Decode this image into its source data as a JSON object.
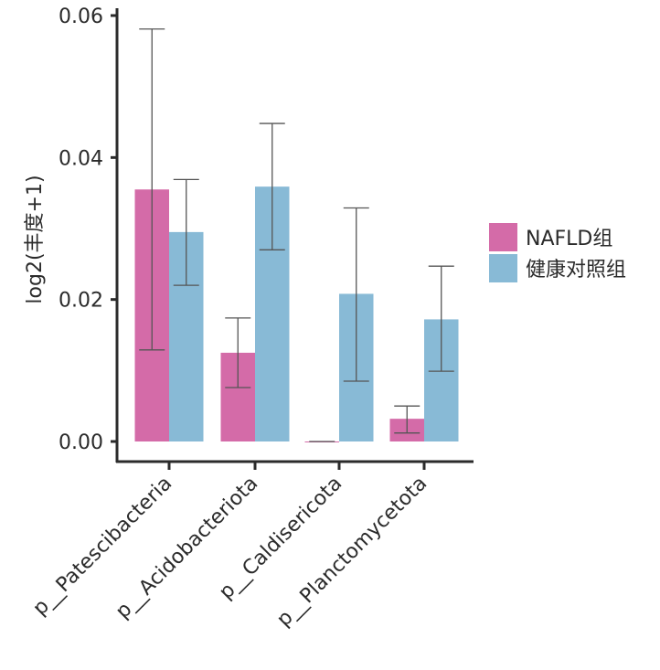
{
  "chart_data": {
    "type": "bar",
    "title": "",
    "xlabel": "",
    "ylabel": "log2(丰度+1)",
    "ylim": [
      0,
      0.06
    ],
    "yticks": [
      0.0,
      0.02,
      0.04,
      0.06
    ],
    "ytick_labels": [
      "0.00",
      "0.02",
      "0.04",
      "0.06"
    ],
    "categories": [
      "p__Patescibacteria",
      "p__Acidobacteriota",
      "p__Caldisericota",
      "p__Planctomycetota"
    ],
    "series": [
      {
        "name": "NAFLD组",
        "color": "#d46ba8",
        "values": [
          0.0355,
          0.0125,
          0.0,
          0.0032
        ],
        "error_upper": [
          0.0581,
          0.0174,
          0.0,
          0.005
        ],
        "error_lower": [
          0.0129,
          0.0076,
          0.0,
          0.0012
        ]
      },
      {
        "name": "健康对照组",
        "color": "#88bad6",
        "values": [
          0.0295,
          0.0359,
          0.0208,
          0.0172
        ],
        "error_upper": [
          0.0369,
          0.0448,
          0.0329,
          0.0247
        ],
        "error_lower": [
          0.022,
          0.027,
          0.0085,
          0.0099
        ]
      }
    ],
    "grid": false,
    "legend_position": "right"
  }
}
